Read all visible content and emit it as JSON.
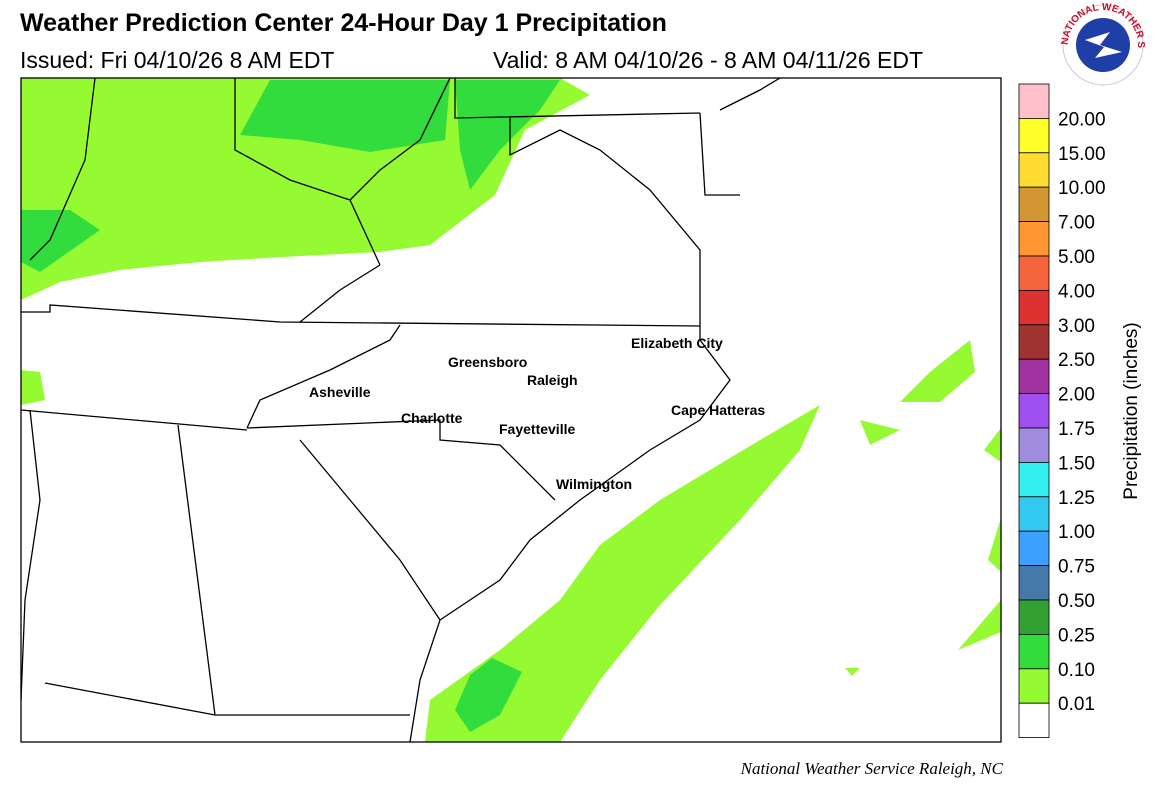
{
  "header": {
    "title": "Weather Prediction Center 24-Hour Day 1 Precipitation",
    "issued": "Issued: Fri 04/10/26 8 AM EDT",
    "valid": "Valid: 8 AM 04/10/26 - 8 AM 04/11/26 EDT"
  },
  "logo": {
    "text": "NATIONAL WEATHER SERVICE"
  },
  "map": {
    "cities": [
      "Greensboro",
      "Raleigh",
      "Elizabeth City",
      "Asheville",
      "Charlotte",
      "Fayetteville",
      "Cape Hatteras",
      "Wilmington"
    ]
  },
  "legend": {
    "title": "Precipitation (inches)",
    "labels": [
      "20.00",
      "15.00",
      "10.00",
      "7.00",
      "5.00",
      "4.00",
      "3.00",
      "2.50",
      "2.00",
      "1.75",
      "1.50",
      "1.25",
      "1.00",
      "0.75",
      "0.50",
      "0.25",
      "0.10",
      "0.01"
    ]
  },
  "footer": "National Weather Service Raleigh, NC"
}
